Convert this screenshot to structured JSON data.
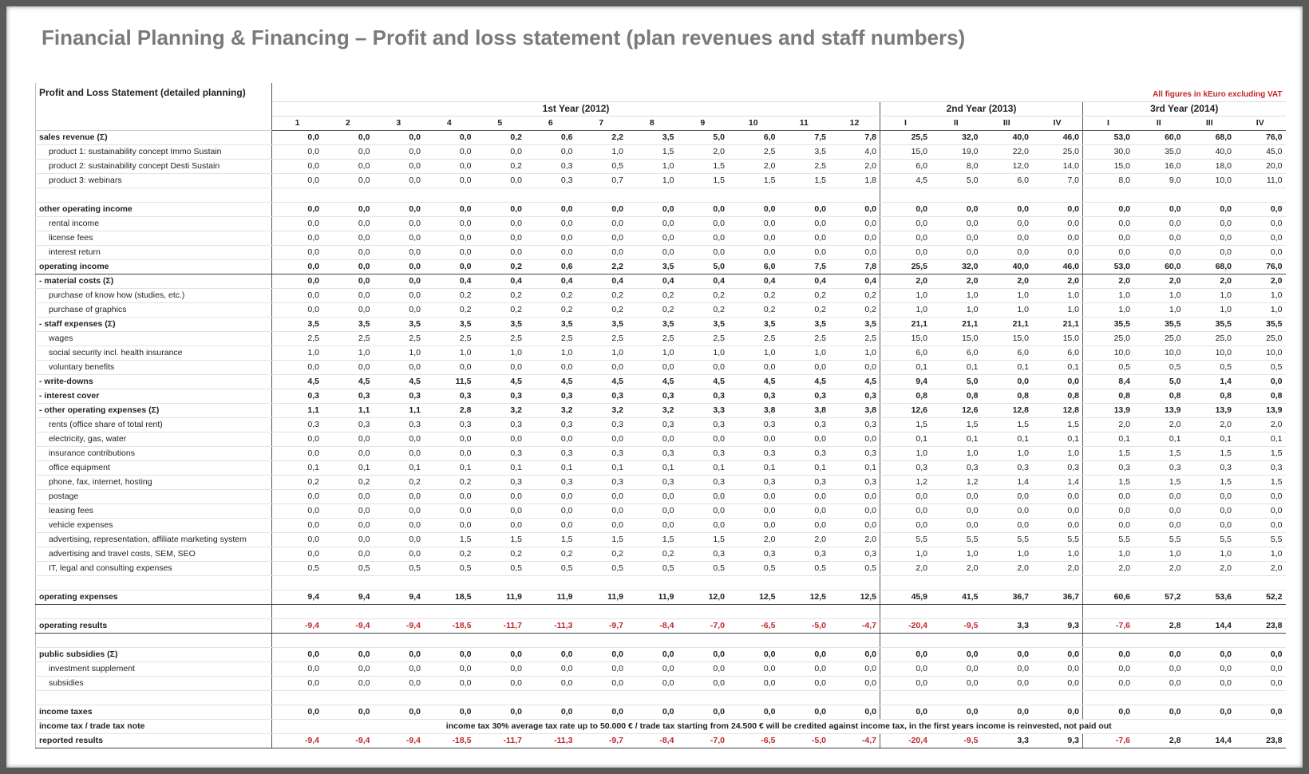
{
  "header": {
    "title": "Financial Planning & Financing – Profit and loss statement (plan revenues and staff numbers)",
    "subtitle": "Profit and Loss Statement (detailed planning)",
    "note": "All figures in kEuro excluding VAT"
  },
  "table": {
    "groups": [
      {
        "label": "1st Year (2012)",
        "columns": [
          "1",
          "2",
          "3",
          "4",
          "5",
          "6",
          "7",
          "8",
          "9",
          "10",
          "11",
          "12"
        ]
      },
      {
        "label": "2nd Year (2013)",
        "columns": [
          "I",
          "II",
          "III",
          "IV"
        ]
      },
      {
        "label": "3rd Year (2014)",
        "columns": [
          "I",
          "II",
          "III",
          "IV"
        ]
      }
    ],
    "rows": [
      {
        "label": "sales revenue (Σ)",
        "values": [
          "0,0",
          "0,0",
          "0,0",
          "0,0",
          "0,2",
          "0,6",
          "2,2",
          "3,5",
          "5,0",
          "6,0",
          "7,5",
          "7,8",
          "25,5",
          "32,0",
          "40,0",
          "46,0",
          "53,0",
          "60,0",
          "68,0",
          "76,0"
        ]
      },
      {
        "label": "product 1: sustainability concept Immo Sustain",
        "values": [
          "0,0",
          "0,0",
          "0,0",
          "0,0",
          "0,0",
          "0,0",
          "1,0",
          "1,5",
          "2,0",
          "2,5",
          "3,5",
          "4,0",
          "15,0",
          "19,0",
          "22,0",
          "25,0",
          "30,0",
          "35,0",
          "40,0",
          "45,0"
        ]
      },
      {
        "label": "product 2: sustainability concept Desti Sustain",
        "values": [
          "0,0",
          "0,0",
          "0,0",
          "0,0",
          "0,2",
          "0,3",
          "0,5",
          "1,0",
          "1,5",
          "2,0",
          "2,5",
          "2,0",
          "6,0",
          "8,0",
          "12,0",
          "14,0",
          "15,0",
          "16,0",
          "18,0",
          "20,0"
        ]
      },
      {
        "label": "product 3: webinars",
        "values": [
          "0,0",
          "0,0",
          "0,0",
          "0,0",
          "0,0",
          "0,3",
          "0,7",
          "1,0",
          "1,5",
          "1,5",
          "1,5",
          "1,8",
          "4,5",
          "5,0",
          "6,0",
          "7,0",
          "8,0",
          "9,0",
          "10,0",
          "11,0"
        ]
      },
      {
        "label": "other operating income",
        "values": [
          "0,0",
          "0,0",
          "0,0",
          "0,0",
          "0,0",
          "0,0",
          "0,0",
          "0,0",
          "0,0",
          "0,0",
          "0,0",
          "0,0",
          "0,0",
          "0,0",
          "0,0",
          "0,0",
          "0,0",
          "0,0",
          "0,0",
          "0,0"
        ]
      },
      {
        "label": "rental income",
        "values": [
          "0,0",
          "0,0",
          "0,0",
          "0,0",
          "0,0",
          "0,0",
          "0,0",
          "0,0",
          "0,0",
          "0,0",
          "0,0",
          "0,0",
          "0,0",
          "0,0",
          "0,0",
          "0,0",
          "0,0",
          "0,0",
          "0,0",
          "0,0"
        ]
      },
      {
        "label": "license fees",
        "values": [
          "0,0",
          "0,0",
          "0,0",
          "0,0",
          "0,0",
          "0,0",
          "0,0",
          "0,0",
          "0,0",
          "0,0",
          "0,0",
          "0,0",
          "0,0",
          "0,0",
          "0,0",
          "0,0",
          "0,0",
          "0,0",
          "0,0",
          "0,0"
        ]
      },
      {
        "label": "interest return",
        "values": [
          "0,0",
          "0,0",
          "0,0",
          "0,0",
          "0,0",
          "0,0",
          "0,0",
          "0,0",
          "0,0",
          "0,0",
          "0,0",
          "0,0",
          "0,0",
          "0,0",
          "0,0",
          "0,0",
          "0,0",
          "0,0",
          "0,0",
          "0,0"
        ]
      },
      {
        "label": "operating income",
        "values": [
          "0,0",
          "0,0",
          "0,0",
          "0,0",
          "0,2",
          "0,6",
          "2,2",
          "3,5",
          "5,0",
          "6,0",
          "7,5",
          "7,8",
          "25,5",
          "32,0",
          "40,0",
          "46,0",
          "53,0",
          "60,0",
          "68,0",
          "76,0"
        ]
      },
      {
        "label": "- material costs (Σ)",
        "values": [
          "0,0",
          "0,0",
          "0,0",
          "0,4",
          "0,4",
          "0,4",
          "0,4",
          "0,4",
          "0,4",
          "0,4",
          "0,4",
          "0,4",
          "2,0",
          "2,0",
          "2,0",
          "2,0",
          "2,0",
          "2,0",
          "2,0",
          "2,0"
        ]
      },
      {
        "label": "purchase of know how (studies, etc.)",
        "values": [
          "0,0",
          "0,0",
          "0,0",
          "0,2",
          "0,2",
          "0,2",
          "0,2",
          "0,2",
          "0,2",
          "0,2",
          "0,2",
          "0,2",
          "1,0",
          "1,0",
          "1,0",
          "1,0",
          "1,0",
          "1,0",
          "1,0",
          "1,0"
        ]
      },
      {
        "label": "purchase of graphics",
        "values": [
          "0,0",
          "0,0",
          "0,0",
          "0,2",
          "0,2",
          "0,2",
          "0,2",
          "0,2",
          "0,2",
          "0,2",
          "0,2",
          "0,2",
          "1,0",
          "1,0",
          "1,0",
          "1,0",
          "1,0",
          "1,0",
          "1,0",
          "1,0"
        ]
      },
      {
        "label": "- staff expenses (Σ)",
        "values": [
          "3,5",
          "3,5",
          "3,5",
          "3,5",
          "3,5",
          "3,5",
          "3,5",
          "3,5",
          "3,5",
          "3,5",
          "3,5",
          "3,5",
          "21,1",
          "21,1",
          "21,1",
          "21,1",
          "35,5",
          "35,5",
          "35,5",
          "35,5"
        ]
      },
      {
        "label": "wages",
        "values": [
          "2,5",
          "2,5",
          "2,5",
          "2,5",
          "2,5",
          "2,5",
          "2,5",
          "2,5",
          "2,5",
          "2,5",
          "2,5",
          "2,5",
          "15,0",
          "15,0",
          "15,0",
          "15,0",
          "25,0",
          "25,0",
          "25,0",
          "25,0"
        ]
      },
      {
        "label": "social security incl. health insurance",
        "values": [
          "1,0",
          "1,0",
          "1,0",
          "1,0",
          "1,0",
          "1,0",
          "1,0",
          "1,0",
          "1,0",
          "1,0",
          "1,0",
          "1,0",
          "6,0",
          "6,0",
          "6,0",
          "6,0",
          "10,0",
          "10,0",
          "10,0",
          "10,0"
        ]
      },
      {
        "label": "voluntary benefits",
        "values": [
          "0,0",
          "0,0",
          "0,0",
          "0,0",
          "0,0",
          "0,0",
          "0,0",
          "0,0",
          "0,0",
          "0,0",
          "0,0",
          "0,0",
          "0,1",
          "0,1",
          "0,1",
          "0,1",
          "0,5",
          "0,5",
          "0,5",
          "0,5"
        ]
      },
      {
        "label": "- write-downs",
        "values": [
          "4,5",
          "4,5",
          "4,5",
          "11,5",
          "4,5",
          "4,5",
          "4,5",
          "4,5",
          "4,5",
          "4,5",
          "4,5",
          "4,5",
          "9,4",
          "5,0",
          "0,0",
          "0,0",
          "8,4",
          "5,0",
          "1,4",
          "0,0"
        ]
      },
      {
        "label": "- interest cover",
        "values": [
          "0,3",
          "0,3",
          "0,3",
          "0,3",
          "0,3",
          "0,3",
          "0,3",
          "0,3",
          "0,3",
          "0,3",
          "0,3",
          "0,3",
          "0,8",
          "0,8",
          "0,8",
          "0,8",
          "0,8",
          "0,8",
          "0,8",
          "0,8"
        ]
      },
      {
        "label": "- other operating expenses (Σ)",
        "values": [
          "1,1",
          "1,1",
          "1,1",
          "2,8",
          "3,2",
          "3,2",
          "3,2",
          "3,2",
          "3,3",
          "3,8",
          "3,8",
          "3,8",
          "12,6",
          "12,6",
          "12,8",
          "12,8",
          "13,9",
          "13,9",
          "13,9",
          "13,9"
        ]
      },
      {
        "label": "rents (office share of total rent)",
        "values": [
          "0,3",
          "0,3",
          "0,3",
          "0,3",
          "0,3",
          "0,3",
          "0,3",
          "0,3",
          "0,3",
          "0,3",
          "0,3",
          "0,3",
          "1,5",
          "1,5",
          "1,5",
          "1,5",
          "2,0",
          "2,0",
          "2,0",
          "2,0"
        ]
      },
      {
        "label": "electricity, gas, water",
        "values": [
          "0,0",
          "0,0",
          "0,0",
          "0,0",
          "0,0",
          "0,0",
          "0,0",
          "0,0",
          "0,0",
          "0,0",
          "0,0",
          "0,0",
          "0,1",
          "0,1",
          "0,1",
          "0,1",
          "0,1",
          "0,1",
          "0,1",
          "0,1"
        ]
      },
      {
        "label": "insurance contributions",
        "values": [
          "0,0",
          "0,0",
          "0,0",
          "0,0",
          "0,3",
          "0,3",
          "0,3",
          "0,3",
          "0,3",
          "0,3",
          "0,3",
          "0,3",
          "1,0",
          "1,0",
          "1,0",
          "1,0",
          "1,5",
          "1,5",
          "1,5",
          "1,5"
        ]
      },
      {
        "label": "office equipment",
        "values": [
          "0,1",
          "0,1",
          "0,1",
          "0,1",
          "0,1",
          "0,1",
          "0,1",
          "0,1",
          "0,1",
          "0,1",
          "0,1",
          "0,1",
          "0,3",
          "0,3",
          "0,3",
          "0,3",
          "0,3",
          "0,3",
          "0,3",
          "0,3"
        ]
      },
      {
        "label": "phone, fax, internet, hosting",
        "values": [
          "0,2",
          "0,2",
          "0,2",
          "0,2",
          "0,3",
          "0,3",
          "0,3",
          "0,3",
          "0,3",
          "0,3",
          "0,3",
          "0,3",
          "1,2",
          "1,2",
          "1,4",
          "1,4",
          "1,5",
          "1,5",
          "1,5",
          "1,5"
        ]
      },
      {
        "label": "postage",
        "values": [
          "0,0",
          "0,0",
          "0,0",
          "0,0",
          "0,0",
          "0,0",
          "0,0",
          "0,0",
          "0,0",
          "0,0",
          "0,0",
          "0,0",
          "0,0",
          "0,0",
          "0,0",
          "0,0",
          "0,0",
          "0,0",
          "0,0",
          "0,0"
        ]
      },
      {
        "label": "leasing fees",
        "values": [
          "0,0",
          "0,0",
          "0,0",
          "0,0",
          "0,0",
          "0,0",
          "0,0",
          "0,0",
          "0,0",
          "0,0",
          "0,0",
          "0,0",
          "0,0",
          "0,0",
          "0,0",
          "0,0",
          "0,0",
          "0,0",
          "0,0",
          "0,0"
        ]
      },
      {
        "label": "vehicle expenses",
        "values": [
          "0,0",
          "0,0",
          "0,0",
          "0,0",
          "0,0",
          "0,0",
          "0,0",
          "0,0",
          "0,0",
          "0,0",
          "0,0",
          "0,0",
          "0,0",
          "0,0",
          "0,0",
          "0,0",
          "0,0",
          "0,0",
          "0,0",
          "0,0"
        ]
      },
      {
        "label": "advertising, representation, affiliate marketing system",
        "values": [
          "0,0",
          "0,0",
          "0,0",
          "1,5",
          "1,5",
          "1,5",
          "1,5",
          "1,5",
          "1,5",
          "2,0",
          "2,0",
          "2,0",
          "5,5",
          "5,5",
          "5,5",
          "5,5",
          "5,5",
          "5,5",
          "5,5",
          "5,5"
        ]
      },
      {
        "label": "advertising and travel costs, SEM, SEO",
        "values": [
          "0,0",
          "0,0",
          "0,0",
          "0,2",
          "0,2",
          "0,2",
          "0,2",
          "0,2",
          "0,3",
          "0,3",
          "0,3",
          "0,3",
          "1,0",
          "1,0",
          "1,0",
          "1,0",
          "1,0",
          "1,0",
          "1,0",
          "1,0"
        ]
      },
      {
        "label": "IT, legal and consulting expenses",
        "values": [
          "0,5",
          "0,5",
          "0,5",
          "0,5",
          "0,5",
          "0,5",
          "0,5",
          "0,5",
          "0,5",
          "0,5",
          "0,5",
          "0,5",
          "2,0",
          "2,0",
          "2,0",
          "2,0",
          "2,0",
          "2,0",
          "2,0",
          "2,0"
        ]
      },
      {
        "label": "operating expenses",
        "values": [
          "9,4",
          "9,4",
          "9,4",
          "18,5",
          "11,9",
          "11,9",
          "11,9",
          "11,9",
          "12,0",
          "12,5",
          "12,5",
          "12,5",
          "45,9",
          "41,5",
          "36,7",
          "36,7",
          "60,6",
          "57,2",
          "53,6",
          "52,2"
        ]
      },
      {
        "label": "operating results",
        "values": [
          "-9,4",
          "-9,4",
          "-9,4",
          "-18,5",
          "-11,7",
          "-11,3",
          "-9,7",
          "-8,4",
          "-7,0",
          "-6,5",
          "-5,0",
          "-4,7",
          "-20,4",
          "-9,5",
          "3,3",
          "9,3",
          "-7,6",
          "2,8",
          "14,4",
          "23,8"
        ]
      },
      {
        "label": "public subsidies (Σ)",
        "values": [
          "0,0",
          "0,0",
          "0,0",
          "0,0",
          "0,0",
          "0,0",
          "0,0",
          "0,0",
          "0,0",
          "0,0",
          "0,0",
          "0,0",
          "0,0",
          "0,0",
          "0,0",
          "0,0",
          "0,0",
          "0,0",
          "0,0",
          "0,0"
        ]
      },
      {
        "label": "investment supplement",
        "values": [
          "0,0",
          "0,0",
          "0,0",
          "0,0",
          "0,0",
          "0,0",
          "0,0",
          "0,0",
          "0,0",
          "0,0",
          "0,0",
          "0,0",
          "0,0",
          "0,0",
          "0,0",
          "0,0",
          "0,0",
          "0,0",
          "0,0",
          "0,0"
        ]
      },
      {
        "label": "subsidies",
        "values": [
          "0,0",
          "0,0",
          "0,0",
          "0,0",
          "0,0",
          "0,0",
          "0,0",
          "0,0",
          "0,0",
          "0,0",
          "0,0",
          "0,0",
          "0,0",
          "0,0",
          "0,0",
          "0,0",
          "0,0",
          "0,0",
          "0,0",
          "0,0"
        ]
      },
      {
        "label": "income taxes",
        "values": [
          "0,0",
          "0,0",
          "0,0",
          "0,0",
          "0,0",
          "0,0",
          "0,0",
          "0,0",
          "0,0",
          "0,0",
          "0,0",
          "0,0",
          "0,0",
          "0,0",
          "0,0",
          "0,0",
          "0,0",
          "0,0",
          "0,0",
          "0,0"
        ]
      },
      {
        "label": "income tax / trade tax note",
        "text": "income tax 30%  average tax rate up to 50.000 € / trade tax starting from 24.500 € will be credited against income tax, in the first years income is reinvested, not paid out"
      },
      {
        "label": "reported results",
        "values": [
          "-9,4",
          "-9,4",
          "-9,4",
          "-18,5",
          "-11,7",
          "-11,3",
          "-9,7",
          "-8,4",
          "-7,0",
          "-6,5",
          "-5,0",
          "-4,7",
          "-20,4",
          "-9,5",
          "3,3",
          "9,3",
          "-7,6",
          "2,8",
          "14,4",
          "23,8"
        ]
      }
    ]
  }
}
